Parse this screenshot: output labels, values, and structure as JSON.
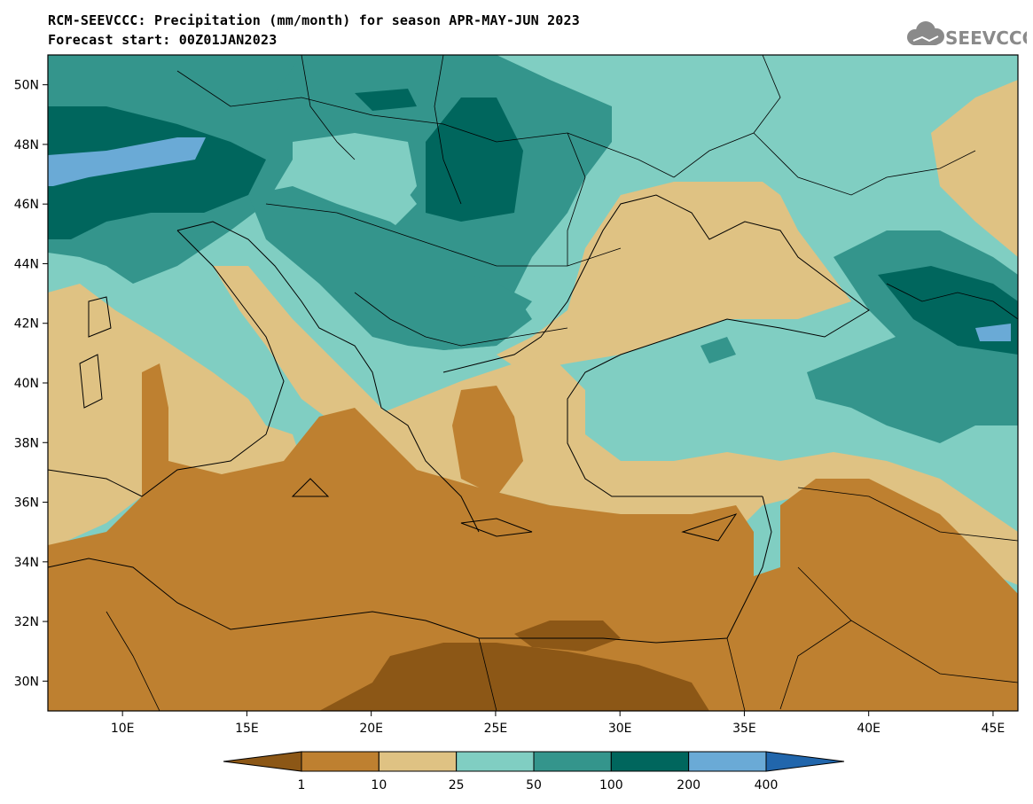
{
  "title": {
    "line1": "RCM-SEEVCCC: Precipitation (mm/month) for season APR-MAY-JUN 2023",
    "line2": "Forecast start: 00Z01JAN2023"
  },
  "logo": {
    "icon": "cloud-icon",
    "text": "SEEVCCC"
  },
  "map": {
    "lon_range": [
      7,
      46
    ],
    "lat_range": [
      29,
      51
    ],
    "lat_ticks": [
      "50N",
      "48N",
      "46N",
      "44N",
      "42N",
      "40N",
      "38N",
      "36N",
      "34N",
      "32N",
      "30N"
    ],
    "lon_ticks": [
      "10E",
      "15E",
      "20E",
      "25E",
      "30E",
      "35E",
      "40E",
      "45E"
    ]
  },
  "colorbar": {
    "levels": [
      "1",
      "10",
      "25",
      "50",
      "100",
      "200",
      "400"
    ],
    "colors": [
      "#8c5716",
      "#be8030",
      "#dfc283",
      "#80cec2",
      "#34958c",
      "#00665d",
      "#6aaad6",
      "#2166ac"
    ]
  }
}
